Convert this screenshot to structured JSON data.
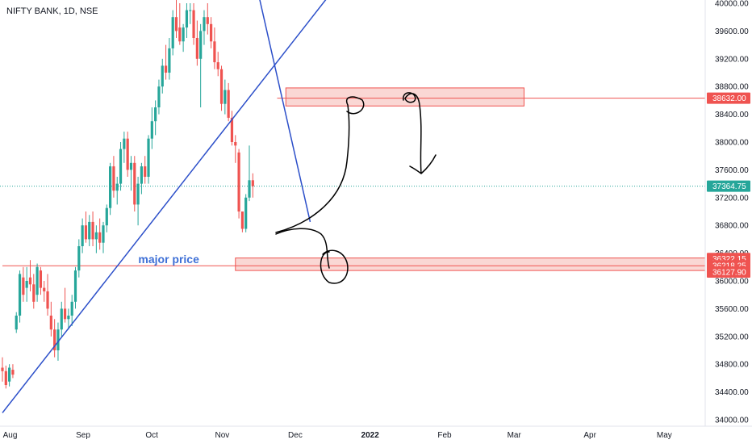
{
  "header": {
    "symbol_label": "NIFTY BANK, 1D, NSE"
  },
  "colors": {
    "up": "#26a69a",
    "down": "#ef5350",
    "trendline": "#2c4fc9",
    "zone_fill": "#f8c9c6",
    "zone_border": "#ef5350",
    "annotation": "#3d6fd6",
    "ink": "#000000",
    "last_price_tag": "#26a69a",
    "level_tag": "#ef5350"
  },
  "chart_data": {
    "type": "candlestick",
    "title": "NIFTY BANK, 1D, NSE",
    "ylim": [
      34000,
      40000
    ],
    "y_ticks": [
      "34000.00",
      "34400.00",
      "34800.00",
      "35200.00",
      "35600.00",
      "36000.00",
      "36400.00",
      "36800.00",
      "37200.00",
      "37600.00",
      "38000.00",
      "38400.00",
      "38800.00",
      "39200.00",
      "39600.00",
      "40000.00"
    ],
    "x_ticks": [
      {
        "label": "Aug",
        "t": 2
      },
      {
        "label": "Sep",
        "t": 23
      },
      {
        "label": "Oct",
        "t": 43
      },
      {
        "label": "Nov",
        "t": 63
      },
      {
        "label": "Dec",
        "t": 84
      },
      {
        "label": "2022",
        "t": 105
      },
      {
        "label": "Feb",
        "t": 127
      },
      {
        "label": "Mar",
        "t": 147
      },
      {
        "label": "Apr",
        "t": 169
      },
      {
        "label": "May",
        "t": 190
      }
    ],
    "grid": false,
    "candles": [
      {
        "o": 34750,
        "h": 34900,
        "l": 34550,
        "c": 34700
      },
      {
        "o": 34700,
        "h": 34780,
        "l": 34450,
        "c": 34500
      },
      {
        "o": 34550,
        "h": 34800,
        "l": 34480,
        "c": 34750
      },
      {
        "o": 34720,
        "h": 34800,
        "l": 34600,
        "c": 34650
      },
      {
        "o": 35300,
        "h": 35550,
        "l": 35250,
        "c": 35500
      },
      {
        "o": 35500,
        "h": 36150,
        "l": 35400,
        "c": 36100
      },
      {
        "o": 36050,
        "h": 36200,
        "l": 35700,
        "c": 35800
      },
      {
        "o": 35900,
        "h": 36200,
        "l": 35700,
        "c": 36000
      },
      {
        "o": 36050,
        "h": 36300,
        "l": 35850,
        "c": 35950
      },
      {
        "o": 35950,
        "h": 36100,
        "l": 35600,
        "c": 35700
      },
      {
        "o": 35800,
        "h": 36250,
        "l": 35700,
        "c": 36200
      },
      {
        "o": 36150,
        "h": 36200,
        "l": 35800,
        "c": 35900
      },
      {
        "o": 35900,
        "h": 36000,
        "l": 35700,
        "c": 35850
      },
      {
        "o": 35850,
        "h": 36100,
        "l": 35500,
        "c": 35600
      },
      {
        "o": 35500,
        "h": 35700,
        "l": 35200,
        "c": 35300
      },
      {
        "o": 35300,
        "h": 35450,
        "l": 34900,
        "c": 35000
      },
      {
        "o": 35000,
        "h": 35400,
        "l": 34850,
        "c": 35300
      },
      {
        "o": 35300,
        "h": 35700,
        "l": 35200,
        "c": 35600
      },
      {
        "o": 35600,
        "h": 35900,
        "l": 35400,
        "c": 35450
      },
      {
        "o": 35450,
        "h": 35600,
        "l": 35300,
        "c": 35500
      },
      {
        "o": 35500,
        "h": 35800,
        "l": 35350,
        "c": 35700
      },
      {
        "o": 35700,
        "h": 36200,
        "l": 35600,
        "c": 36150
      },
      {
        "o": 36150,
        "h": 36600,
        "l": 36050,
        "c": 36500
      },
      {
        "o": 36500,
        "h": 36900,
        "l": 36400,
        "c": 36800
      },
      {
        "o": 36800,
        "h": 37000,
        "l": 36550,
        "c": 36600
      },
      {
        "o": 36600,
        "h": 36950,
        "l": 36500,
        "c": 36850
      },
      {
        "o": 36850,
        "h": 37000,
        "l": 36500,
        "c": 36600
      },
      {
        "o": 36600,
        "h": 36800,
        "l": 36400,
        "c": 36700
      },
      {
        "o": 36700,
        "h": 36900,
        "l": 36450,
        "c": 36550
      },
      {
        "o": 36550,
        "h": 36850,
        "l": 36400,
        "c": 36800
      },
      {
        "o": 36800,
        "h": 37100,
        "l": 36700,
        "c": 37050
      },
      {
        "o": 37050,
        "h": 37700,
        "l": 36950,
        "c": 37650
      },
      {
        "o": 37650,
        "h": 37800,
        "l": 37200,
        "c": 37300
      },
      {
        "o": 37300,
        "h": 37500,
        "l": 37100,
        "c": 37400
      },
      {
        "o": 37400,
        "h": 38000,
        "l": 37300,
        "c": 37900
      },
      {
        "o": 37900,
        "h": 38150,
        "l": 37700,
        "c": 38050
      },
      {
        "o": 38050,
        "h": 38150,
        "l": 37500,
        "c": 37600
      },
      {
        "o": 37600,
        "h": 37800,
        "l": 37300,
        "c": 37700
      },
      {
        "o": 37700,
        "h": 37800,
        "l": 37000,
        "c": 37100
      },
      {
        "o": 37100,
        "h": 37500,
        "l": 36800,
        "c": 37400
      },
      {
        "o": 37400,
        "h": 37700,
        "l": 37250,
        "c": 37650
      },
      {
        "o": 37650,
        "h": 37800,
        "l": 37400,
        "c": 37500
      },
      {
        "o": 37500,
        "h": 38100,
        "l": 37400,
        "c": 38050
      },
      {
        "o": 38050,
        "h": 38500,
        "l": 37900,
        "c": 38300
      },
      {
        "o": 38300,
        "h": 38600,
        "l": 38100,
        "c": 38500
      },
      {
        "o": 38500,
        "h": 38900,
        "l": 38400,
        "c": 38800
      },
      {
        "o": 38800,
        "h": 39200,
        "l": 38700,
        "c": 39100
      },
      {
        "o": 39100,
        "h": 39400,
        "l": 38900,
        "c": 39000
      },
      {
        "o": 39000,
        "h": 39500,
        "l": 38900,
        "c": 39350
      },
      {
        "o": 39350,
        "h": 39900,
        "l": 39250,
        "c": 39800
      },
      {
        "o": 39800,
        "h": 40050,
        "l": 39500,
        "c": 39600
      },
      {
        "o": 39650,
        "h": 40000,
        "l": 39400,
        "c": 39450
      },
      {
        "o": 39450,
        "h": 39700,
        "l": 39300,
        "c": 39650
      },
      {
        "o": 39650,
        "h": 40000,
        "l": 39500,
        "c": 39900
      },
      {
        "o": 39900,
        "h": 40000,
        "l": 39700,
        "c": 39900
      },
      {
        "o": 39900,
        "h": 40000,
        "l": 39400,
        "c": 39500
      },
      {
        "o": 39500,
        "h": 39750,
        "l": 39100,
        "c": 39200
      },
      {
        "o": 39200,
        "h": 39700,
        "l": 38500,
        "c": 39600
      },
      {
        "o": 39600,
        "h": 39900,
        "l": 39400,
        "c": 39800
      },
      {
        "o": 39800,
        "h": 40000,
        "l": 39550,
        "c": 39700
      },
      {
        "o": 39700,
        "h": 39800,
        "l": 39350,
        "c": 39450
      },
      {
        "o": 39450,
        "h": 39650,
        "l": 39050,
        "c": 39150
      },
      {
        "o": 39150,
        "h": 39300,
        "l": 38950,
        "c": 39050
      },
      {
        "o": 39050,
        "h": 39100,
        "l": 38450,
        "c": 38550
      },
      {
        "o": 38550,
        "h": 38900,
        "l": 38400,
        "c": 38750
      },
      {
        "o": 38750,
        "h": 38850,
        "l": 38300,
        "c": 38350
      },
      {
        "o": 38350,
        "h": 38450,
        "l": 37950,
        "c": 38000
      },
      {
        "o": 38000,
        "h": 38100,
        "l": 37700,
        "c": 37950
      },
      {
        "o": 37850,
        "h": 37900,
        "l": 36900,
        "c": 37000
      },
      {
        "o": 37000,
        "h": 37000,
        "l": 36700,
        "c": 36750
      },
      {
        "o": 36750,
        "h": 37250,
        "l": 36700,
        "c": 37200
      },
      {
        "o": 37200,
        "h": 37950,
        "l": 37150,
        "c": 37450
      },
      {
        "o": 37450,
        "h": 37550,
        "l": 37200,
        "c": 37365
      }
    ],
    "trendlines": [
      {
        "name": "rising support",
        "from": {
          "t": 0,
          "v": 34100
        },
        "to": {
          "t": 100,
          "v": 40500
        }
      },
      {
        "name": "falling line",
        "from": {
          "t": 74,
          "v": 40050
        },
        "to": {
          "t": 88.5,
          "v": 36850
        }
      }
    ],
    "zones": [
      {
        "name": "supply zone",
        "t0": 81.5,
        "t1": 150,
        "v_top": 38780,
        "v_bottom": 38520
      },
      {
        "name": "demand zone",
        "t0": 67,
        "t1": 205,
        "v_top": 36330,
        "v_bottom": 36150
      }
    ],
    "level_lines": [
      {
        "value": 38632.0,
        "t0": 79,
        "color": "#ef5350"
      },
      {
        "value": 36218.25,
        "t0": 0,
        "color": "#ef5350"
      }
    ],
    "annotations": [
      {
        "text": "major price",
        "t": 40,
        "v": 36280
      }
    ],
    "price_tags": [
      {
        "label": "38632.00",
        "value": 38632.0,
        "kind": "level"
      },
      {
        "label": "37364.75",
        "value": 37364.75,
        "kind": "last"
      },
      {
        "label": "36322.15",
        "value": 36322.15,
        "kind": "level"
      },
      {
        "label": "36218.25",
        "value": 36218.25,
        "kind": "level"
      },
      {
        "label": "36127.90",
        "value": 36127.9,
        "kind": "level"
      }
    ],
    "last_price": 37364.75
  }
}
